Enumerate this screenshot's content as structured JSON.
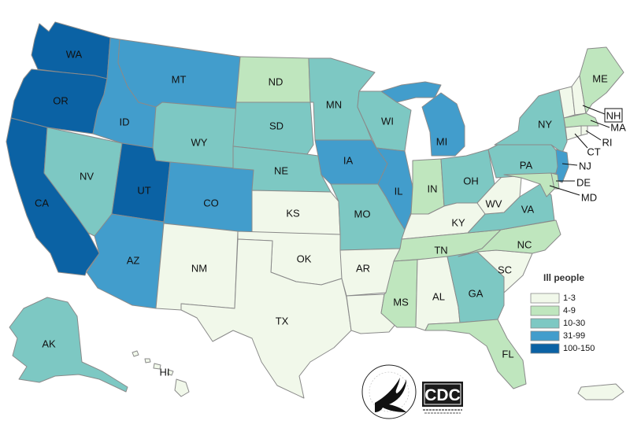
{
  "legend": {
    "title": "Ill people",
    "items": [
      {
        "label": "1-3",
        "color": "#f1f8ea"
      },
      {
        "label": "4-9",
        "color": "#bfe6be"
      },
      {
        "label": "10-30",
        "color": "#7dc8c3"
      },
      {
        "label": "31-99",
        "color": "#429dcc"
      },
      {
        "label": "100-150",
        "color": "#0b62a4"
      }
    ]
  },
  "states": {
    "WA": {
      "label": "WA",
      "category": "100-150"
    },
    "OR": {
      "label": "OR",
      "category": "100-150"
    },
    "CA": {
      "label": "CA",
      "category": "100-150"
    },
    "UT": {
      "label": "UT",
      "category": "100-150"
    },
    "ID": {
      "label": "ID",
      "category": "31-99"
    },
    "MT": {
      "label": "MT",
      "category": "31-99"
    },
    "CO": {
      "label": "CO",
      "category": "31-99"
    },
    "AZ": {
      "label": "AZ",
      "category": "31-99"
    },
    "IA": {
      "label": "IA",
      "category": "31-99"
    },
    "IL": {
      "label": "IL",
      "category": "31-99"
    },
    "MI": {
      "label": "MI",
      "category": "31-99"
    },
    "NV": {
      "label": "NV",
      "category": "10-30"
    },
    "WY": {
      "label": "WY",
      "category": "10-30"
    },
    "SD": {
      "label": "SD",
      "category": "10-30"
    },
    "NE": {
      "label": "NE",
      "category": "10-30"
    },
    "MN": {
      "label": "MN",
      "category": "10-30"
    },
    "WI": {
      "label": "WI",
      "category": "10-30"
    },
    "MO": {
      "label": "MO",
      "category": "10-30"
    },
    "OH": {
      "label": "OH",
      "category": "10-30"
    },
    "PA": {
      "label": "PA",
      "category": "10-30"
    },
    "NY": {
      "label": "NY",
      "category": "10-30"
    },
    "NJ": {
      "label": "NJ",
      "category": "31-99"
    },
    "VA": {
      "label": "VA",
      "category": "10-30"
    },
    "GA": {
      "label": "GA",
      "category": "10-30"
    },
    "AK": {
      "label": "AK",
      "category": "10-30"
    },
    "ND": {
      "label": "ND",
      "category": "4-9"
    },
    "IN": {
      "label": "IN",
      "category": "4-9"
    },
    "TN": {
      "label": "TN",
      "category": "4-9"
    },
    "NC": {
      "label": "NC",
      "category": "4-9"
    },
    "MS": {
      "label": "MS",
      "category": "4-9"
    },
    "FL": {
      "label": "FL",
      "category": "4-9"
    },
    "ME": {
      "label": "ME",
      "category": "4-9"
    },
    "MD": {
      "label": "MD",
      "category": "4-9"
    },
    "DE": {
      "label": "DE",
      "category": "4-9"
    },
    "MA": {
      "label": "MA",
      "category": "4-9"
    },
    "NM": {
      "label": "NM",
      "category": "1-3"
    },
    "KS": {
      "label": "KS",
      "category": "1-3"
    },
    "OK": {
      "label": "OK",
      "category": "1-3"
    },
    "TX": {
      "label": "TX",
      "category": "1-3"
    },
    "AR": {
      "label": "AR",
      "category": "1-3"
    },
    "AL": {
      "label": "AL",
      "category": "1-3"
    },
    "SC": {
      "label": "SC",
      "category": "1-3"
    },
    "KY": {
      "label": "KY",
      "category": "1-3"
    },
    "WV": {
      "label": "WV",
      "category": "1-3"
    },
    "NH": {
      "label": "NH",
      "category": "1-3"
    },
    "VT": {
      "label": "",
      "category": "1-3"
    },
    "CT": {
      "label": "CT",
      "category": "1-3"
    },
    "RI": {
      "label": "RI",
      "category": "1-3"
    },
    "HI": {
      "label": "HI",
      "category": "1-3"
    },
    "LA": {
      "label": "",
      "category": "1-3"
    },
    "PR": {
      "label": "",
      "category": "1-3"
    }
  },
  "logos": {
    "cdc": "CDC",
    "hhs": "HHS seal"
  }
}
